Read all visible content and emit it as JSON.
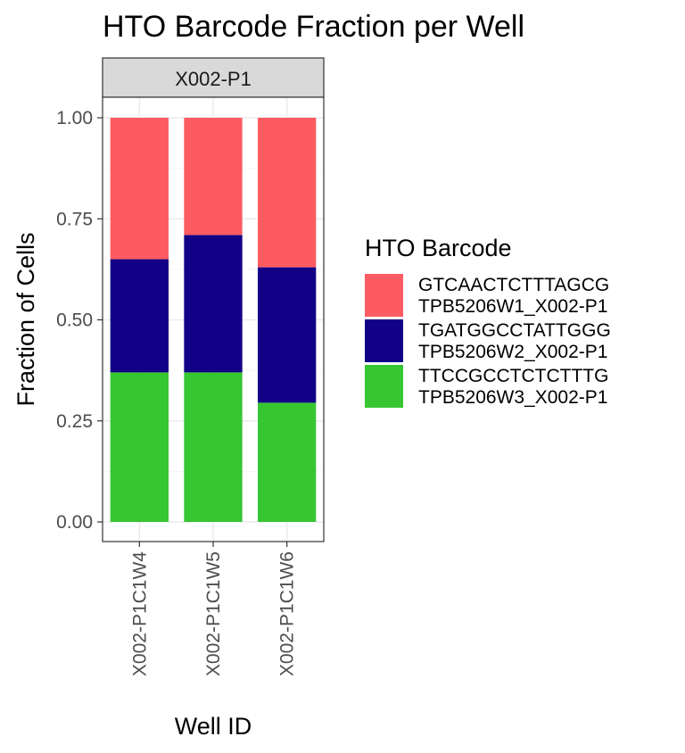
{
  "chart_data": {
    "type": "bar",
    "stacked": true,
    "title": "HTO Barcode Fraction per Well",
    "facet_label": "X002-P1",
    "xlabel": "Well ID",
    "ylabel": "Fraction of Cells",
    "ylim": [
      0,
      1
    ],
    "yticks": [
      "0.00",
      "0.25",
      "0.50",
      "0.75",
      "1.00"
    ],
    "categories": [
      "X002-P1C1W4",
      "X002-P1C1W5",
      "X002-P1C1W6"
    ],
    "series": [
      {
        "name": "TTCCGCCTCTCTTTG\nTPB5206W3_X002-P1",
        "color": "#36c632",
        "values": [
          0.37,
          0.37,
          0.295
        ]
      },
      {
        "name": "TGATGGCCTATTGGG\nTPB5206W2_X002-P1",
        "color": "#120086",
        "values": [
          0.28,
          0.34,
          0.335
        ]
      },
      {
        "name": "GTCAACTCTTTAGCG\nTPB5206W1_X002-P1",
        "color": "#fd5b62",
        "values": [
          0.35,
          0.29,
          0.37
        ]
      }
    ],
    "legend": {
      "title": "HTO Barcode",
      "placement": "right",
      "entries": [
        {
          "line1": "GTCAACTCTTTAGCG",
          "line2": "TPB5206W1_X002-P1",
          "color": "#fd5b62"
        },
        {
          "line1": "TGATGGCCTATTGGG",
          "line2": "TPB5206W2_X002-P1",
          "color": "#120086"
        },
        {
          "line1": "TTCCGCCTCTCTTTG",
          "line2": "TPB5206W3_X002-P1",
          "color": "#36c632"
        }
      ]
    },
    "grid": true
  }
}
